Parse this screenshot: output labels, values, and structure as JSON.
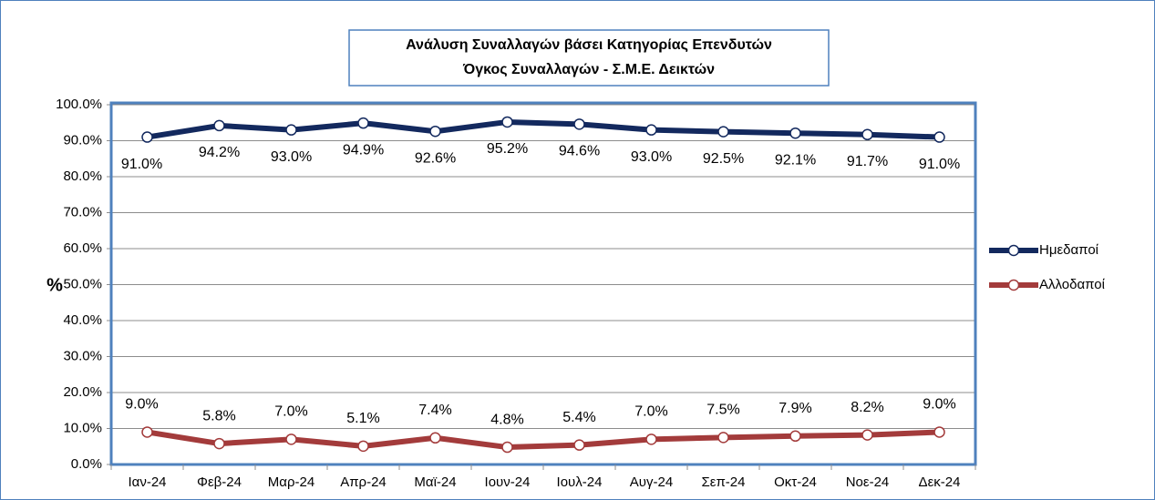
{
  "chart_data": {
    "type": "line",
    "title": "Ανάλυση Συναλλαγών βάσει Κατηγορίας Επενδυτών",
    "subtitle": "Όγκος Συναλλαγών - Σ.Μ.Ε. Δεικτών",
    "y_label": "%",
    "categories": [
      "Ιαν-24",
      "Φεβ-24",
      "Μαρ-24",
      "Απρ-24",
      "Μαϊ-24",
      "Ιουν-24",
      "Ιουλ-24",
      "Αυγ-24",
      "Σεπ-24",
      "Οκτ-24",
      "Νοε-24",
      "Δεκ-24"
    ],
    "series": [
      {
        "name": "Ημεδαποί",
        "color": "#13295e",
        "values": [
          91.0,
          94.2,
          93.0,
          94.9,
          92.6,
          95.2,
          94.6,
          93.0,
          92.5,
          92.1,
          91.7,
          91.0
        ],
        "value_labels": [
          "91.0%",
          "94.2%",
          "93.0%",
          "94.9%",
          "92.6%",
          "95.2%",
          "94.6%",
          "93.0%",
          "92.5%",
          "92.1%",
          "91.7%",
          "91.0%"
        ]
      },
      {
        "name": "Αλλοδαποί",
        "color": "#a33b3b",
        "values": [
          9.0,
          5.8,
          7.0,
          5.1,
          7.4,
          4.8,
          5.4,
          7.0,
          7.5,
          7.9,
          8.2,
          9.0
        ],
        "value_labels": [
          "9.0%",
          "5.8%",
          "7.0%",
          "5.1%",
          "7.4%",
          "4.8%",
          "5.4%",
          "7.0%",
          "7.5%",
          "7.9%",
          "8.2%",
          "9.0%"
        ]
      }
    ],
    "ylim": [
      0,
      100
    ],
    "yticks": [
      {
        "value": 0,
        "label": "0.0%"
      },
      {
        "value": 10,
        "label": "10.0%"
      },
      {
        "value": 20,
        "label": "20.0%"
      },
      {
        "value": 30,
        "label": "30.0%"
      },
      {
        "value": 40,
        "label": "40.0%"
      },
      {
        "value": 50,
        "label": "50.0%"
      },
      {
        "value": 60,
        "label": "60.0%"
      },
      {
        "value": 70,
        "label": "70.0%"
      },
      {
        "value": 80,
        "label": "80.0%"
      },
      {
        "value": 90,
        "label": "90.0%"
      },
      {
        "value": 100,
        "label": "100.0%"
      }
    ],
    "grid": true,
    "legend": "right"
  }
}
